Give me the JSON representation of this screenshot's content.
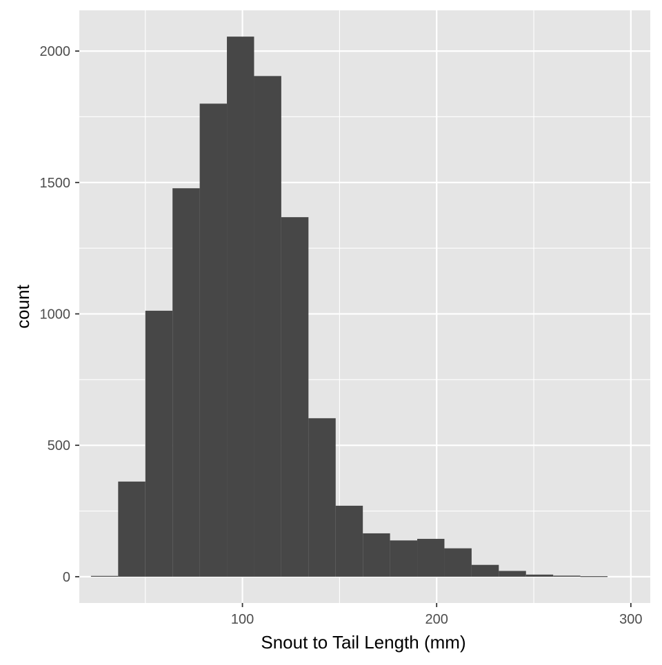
{
  "chart_data": {
    "type": "bar",
    "subtype": "histogram",
    "title": "",
    "xlabel": "Snout to Tail Length (mm)",
    "ylabel": "count",
    "xlim": [
      16,
      310
    ],
    "ylim": [
      -100,
      2155
    ],
    "x_ticks": [
      100,
      200,
      300
    ],
    "x_tick_labels": [
      "100",
      "200",
      "300"
    ],
    "x_minor_ticks": [
      50,
      150,
      250
    ],
    "y_ticks": [
      0,
      500,
      1000,
      1500,
      2000
    ],
    "y_tick_labels": [
      "0",
      "500",
      "1000",
      "1500",
      "2000"
    ],
    "y_minor_ticks": [
      250,
      750,
      1250,
      1750
    ],
    "grid": true,
    "legend": "none",
    "bin_width": 14,
    "bins": [
      {
        "x_start": 22,
        "x_end": 36,
        "count": 3
      },
      {
        "x_start": 36,
        "x_end": 50,
        "count": 362
      },
      {
        "x_start": 50,
        "x_end": 64,
        "count": 1012
      },
      {
        "x_start": 64,
        "x_end": 78,
        "count": 1478
      },
      {
        "x_start": 78,
        "x_end": 92,
        "count": 1800
      },
      {
        "x_start": 92,
        "x_end": 106,
        "count": 2055
      },
      {
        "x_start": 106,
        "x_end": 120,
        "count": 1905
      },
      {
        "x_start": 120,
        "x_end": 134,
        "count": 1368
      },
      {
        "x_start": 134,
        "x_end": 148,
        "count": 603
      },
      {
        "x_start": 148,
        "x_end": 162,
        "count": 270
      },
      {
        "x_start": 162,
        "x_end": 176,
        "count": 165
      },
      {
        "x_start": 176,
        "x_end": 190,
        "count": 138
      },
      {
        "x_start": 190,
        "x_end": 204,
        "count": 144
      },
      {
        "x_start": 204,
        "x_end": 218,
        "count": 108
      },
      {
        "x_start": 218,
        "x_end": 232,
        "count": 45
      },
      {
        "x_start": 232,
        "x_end": 246,
        "count": 22
      },
      {
        "x_start": 246,
        "x_end": 260,
        "count": 8
      },
      {
        "x_start": 260,
        "x_end": 274,
        "count": 4
      },
      {
        "x_start": 274,
        "x_end": 288,
        "count": 2
      }
    ],
    "colors": {
      "panel_background": "#e5e5e5",
      "grid": "#ffffff",
      "bar_fill": "#474747",
      "tick_text": "#4d4d4d",
      "axis_title": "#000000"
    }
  }
}
